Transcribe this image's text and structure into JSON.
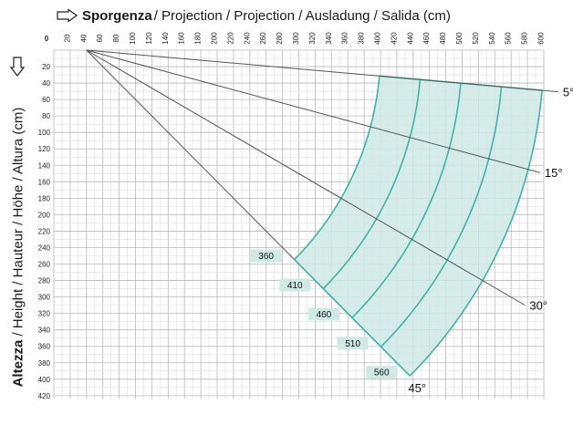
{
  "header": {
    "bold": "Sporgenza",
    "rest": " / Projection / Projection / Ausladung / Salida (cm)"
  },
  "y_axis": {
    "bold": "Altezza",
    "rest": " / Height / Hauteur / Höhe / Altura  (cm)"
  },
  "x_ticks": [
    "0",
    "20",
    "40",
    "60",
    "80",
    "100",
    "120",
    "140",
    "160",
    "180",
    "200",
    "220",
    "240",
    "260",
    "280",
    "300",
    "320",
    "340",
    "360",
    "380",
    "400",
    "420",
    "440",
    "460",
    "480",
    "500",
    "520",
    "540",
    "560",
    "580",
    "600"
  ],
  "y_ticks": [
    "20",
    "40",
    "60",
    "80",
    "100",
    "120",
    "140",
    "160",
    "180",
    "200",
    "220",
    "240",
    "260",
    "280",
    "300",
    "320",
    "340",
    "360",
    "380",
    "400",
    "420"
  ],
  "angles": [
    "5°",
    "15°",
    "30°",
    "45°"
  ],
  "arm_lengths": [
    "360",
    "410",
    "460",
    "510",
    "560"
  ],
  "colors": {
    "fill": "#cfe9e5",
    "stroke": "#3bb5a8",
    "grid": "#c8c8c8",
    "box": "#cfe9e5"
  },
  "chart_data": {
    "type": "diagram",
    "origin": {
      "x": 40,
      "y": 0
    },
    "xlim": [
      0,
      600
    ],
    "ylim": [
      0,
      420
    ],
    "angle_lines": [
      {
        "label": "5°",
        "angle_deg": 5
      },
      {
        "label": "15°",
        "angle_deg": 15
      },
      {
        "label": "30°",
        "angle_deg": 30
      },
      {
        "label": "45°",
        "angle_deg": 45
      }
    ],
    "arm_lengths_cm": [
      360,
      410,
      460,
      510,
      560
    ]
  }
}
